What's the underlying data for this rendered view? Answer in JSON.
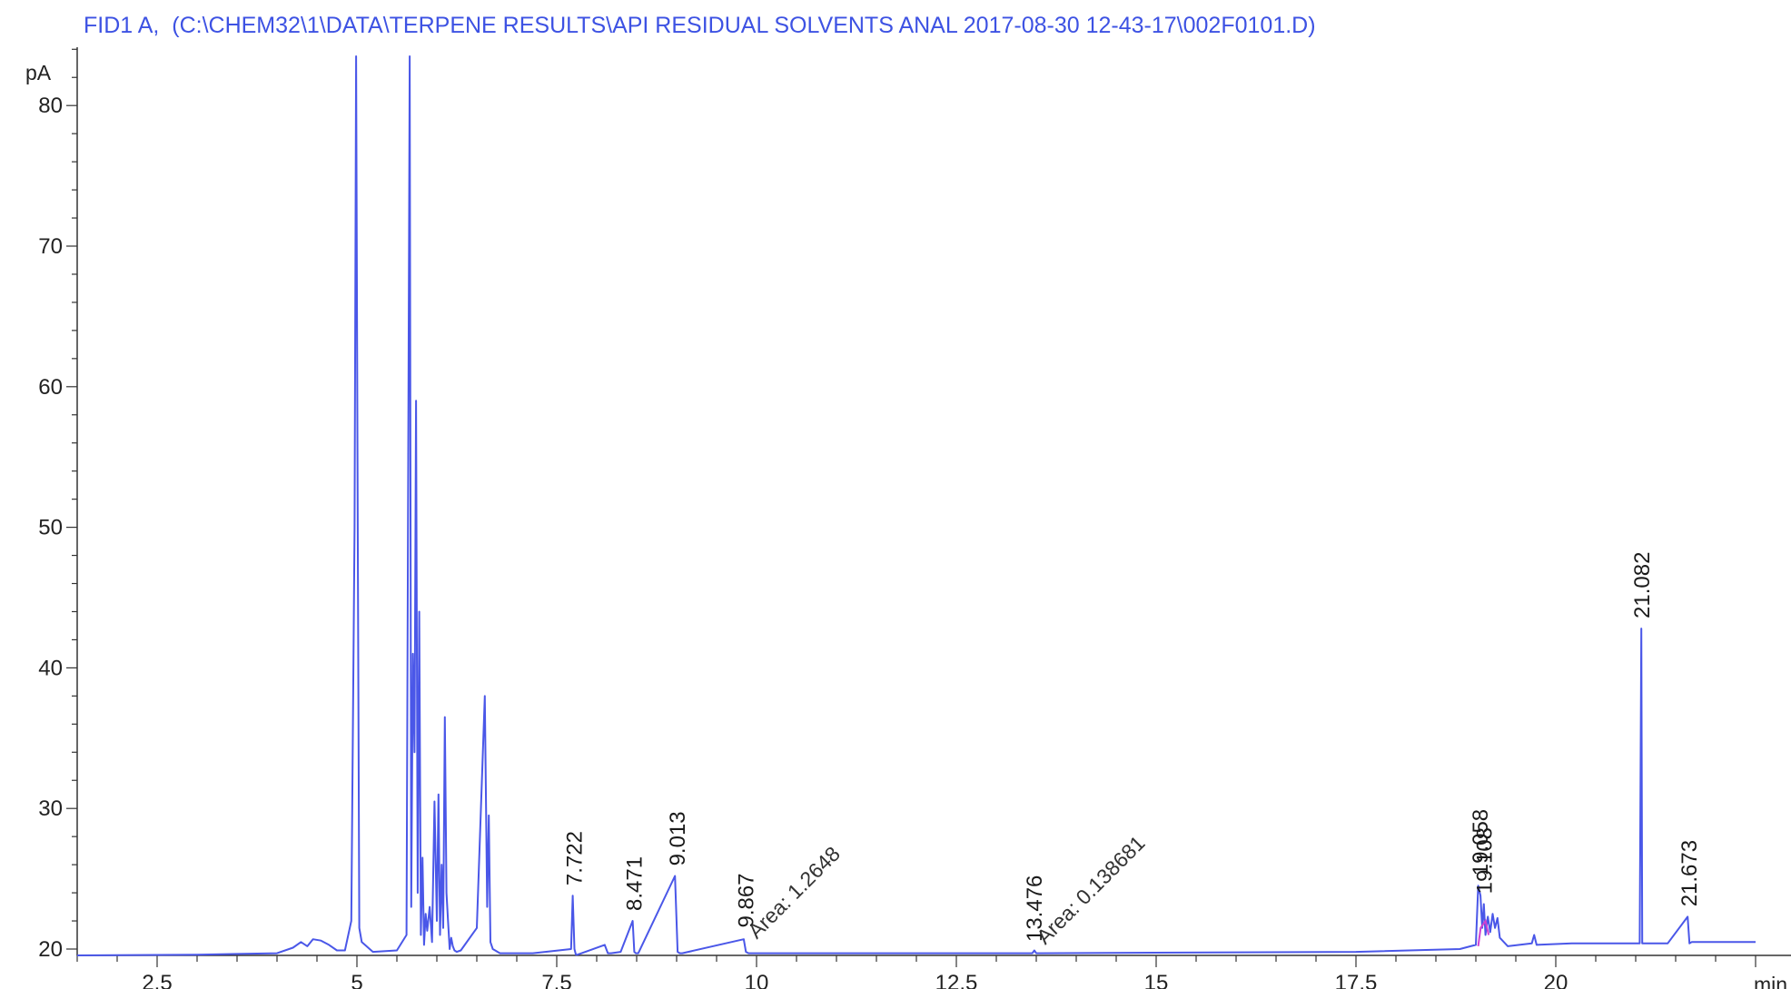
{
  "chart_data": {
    "type": "line",
    "title": "FID1 A,  (C:\\CHEM32\\1\\DATA\\TERPENE RESULTS\\API RESIDUAL SOLVENTS ANAL 2017-08-30 12-43-17\\002F0101.D)",
    "ylabel": "pA",
    "xlabel": "min",
    "xlim": [
      1.5,
      22.5
    ],
    "ylim": [
      19.5,
      85
    ],
    "x_ticks": [
      2.5,
      5,
      7.5,
      10,
      12.5,
      15,
      17.5,
      20
    ],
    "y_ticks": [
      20,
      30,
      40,
      50,
      60,
      70,
      80
    ],
    "grid": false,
    "series": [
      {
        "color": "#4a57e8",
        "x": [
          1.5,
          3.0,
          4.0,
          4.2,
          4.3,
          4.38,
          4.45,
          4.55,
          4.65,
          4.75,
          4.85,
          4.93,
          4.97,
          4.99,
          5.01,
          5.03,
          5.06,
          5.2,
          5.5,
          5.62,
          5.66,
          5.68,
          5.7,
          5.72,
          5.74,
          5.76,
          5.78,
          5.8,
          5.82,
          5.84,
          5.86,
          5.88,
          5.91,
          5.94,
          5.97,
          6.0,
          6.02,
          6.04,
          6.06,
          6.08,
          6.1,
          6.12,
          6.14,
          6.16,
          6.18,
          6.2,
          6.22,
          6.25,
          6.3,
          6.5,
          6.6,
          6.63,
          6.65,
          6.67,
          6.7,
          6.73,
          6.76,
          6.79,
          6.85,
          7.2,
          7.68,
          7.7,
          7.722,
          7.74,
          7.76,
          8.1,
          8.14,
          8.18,
          8.3,
          8.45,
          8.471,
          8.49,
          8.52,
          8.98,
          9.013,
          9.04,
          9.07,
          9.84,
          9.867,
          9.9,
          9.95,
          13.45,
          13.476,
          13.5,
          17.5,
          18.8,
          19.0,
          19.03,
          19.058,
          19.08,
          19.1,
          19.12,
          19.15,
          19.18,
          19.21,
          19.24,
          19.27,
          19.3,
          19.4,
          19.7,
          19.73,
          19.76,
          20.2,
          21.05,
          21.07,
          21.082,
          21.095,
          21.11,
          21.4,
          21.65,
          21.673,
          21.7,
          22.0,
          22.5
        ],
        "values": [
          19.5,
          19.6,
          19.7,
          20.1,
          20.5,
          20.2,
          20.7,
          20.6,
          20.3,
          19.9,
          19.9,
          22.0,
          50.0,
          100.0,
          50.0,
          21.5,
          20.5,
          19.8,
          19.9,
          21.0,
          100.0,
          23.0,
          41.0,
          34.0,
          59.0,
          24.0,
          44.0,
          21.0,
          26.5,
          20.3,
          22.5,
          21.3,
          23.0,
          20.5,
          30.5,
          22.0,
          31.0,
          21.0,
          26.0,
          21.5,
          36.5,
          24.0,
          22.0,
          20.0,
          20.8,
          20.2,
          19.9,
          19.8,
          19.9,
          21.5,
          38.0,
          23.0,
          29.5,
          20.5,
          20.0,
          19.9,
          19.8,
          19.7,
          19.7,
          19.7,
          20.0,
          23.8,
          20.0,
          19.6,
          19.6,
          20.3,
          19.7,
          19.7,
          19.8,
          22.0,
          19.8,
          19.7,
          19.7,
          25.2,
          19.8,
          19.7,
          19.7,
          20.7,
          19.8,
          19.7,
          19.7,
          19.7,
          19.9,
          19.7,
          19.8,
          20.0,
          20.3,
          24.5,
          23.8,
          21.5,
          23.2,
          21.0,
          22.3,
          21.2,
          22.5,
          21.5,
          22.2,
          20.8,
          20.2,
          20.4,
          21.0,
          20.3,
          20.4,
          20.4,
          42.8,
          20.4,
          20.4,
          20.4,
          20.4,
          22.3,
          20.4,
          20.5,
          20.5,
          20.5
        ]
      }
    ],
    "peak_labels": [
      {
        "x": 7.722,
        "y": 24.0,
        "text": "7.722"
      },
      {
        "x": 8.471,
        "y": 22.2,
        "text": "8.471"
      },
      {
        "x": 9.013,
        "y": 25.4,
        "text": "9.013"
      },
      {
        "x": 9.867,
        "y": 21.0,
        "text": "9.867"
      },
      {
        "x": 13.476,
        "y": 20.0,
        "text": "13.476"
      },
      {
        "x": 19.058,
        "y": 24.7,
        "text": "19.058"
      },
      {
        "x": 19.108,
        "y": 23.4,
        "text": "19.108"
      },
      {
        "x": 21.082,
        "y": 43.0,
        "text": "21.082"
      },
      {
        "x": 21.673,
        "y": 22.5,
        "text": "21.673"
      }
    ],
    "area_annotations": [
      {
        "x": 9.867,
        "y": 20.4,
        "text": "Area: 1.2648"
      },
      {
        "x": 13.476,
        "y": 20.0,
        "text": "Area: 0.138681"
      }
    ],
    "integration_marks": [
      {
        "x": [
          19.03,
          19.06,
          19.12,
          19.16
        ],
        "values": [
          20.2,
          21.5,
          22.0,
          21.0
        ],
        "color": "#d040d0"
      }
    ]
  }
}
